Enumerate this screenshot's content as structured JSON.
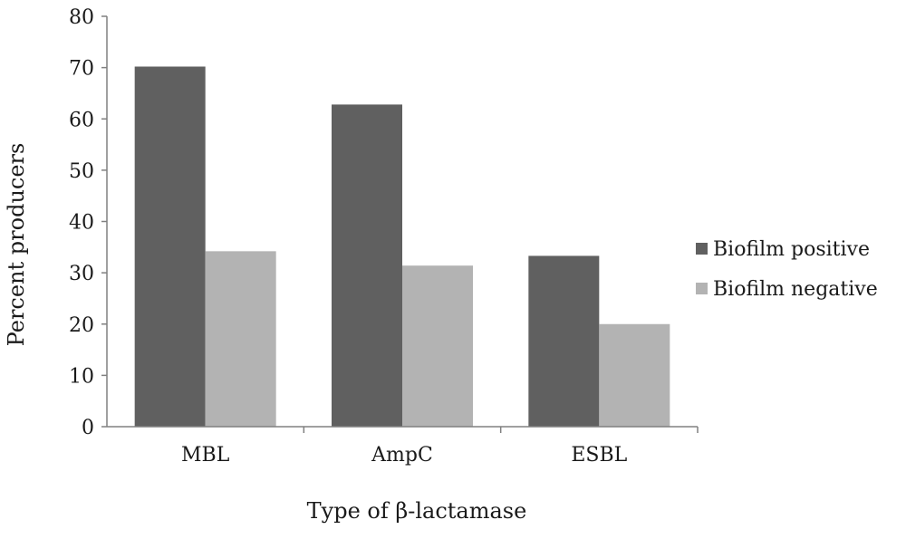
{
  "chart_data": {
    "type": "bar",
    "title": "",
    "xlabel": "Type of β-lactamase",
    "ylabel": "Percent producers",
    "categories": [
      "MBL",
      "AmpC",
      "ESBL"
    ],
    "series": [
      {
        "name": "Biofilm positive",
        "color": "#606060",
        "values": [
          70.2,
          62.8,
          33.3
        ]
      },
      {
        "name": "Biofilm negative",
        "color": "#b3b3b3",
        "values": [
          34.2,
          31.4,
          20.0
        ]
      }
    ],
    "ylim": [
      0,
      80
    ],
    "yticks": [
      "0",
      "10",
      "20",
      "30",
      "40",
      "50",
      "60",
      "70",
      "80"
    ],
    "grid": false,
    "legend": "right"
  }
}
